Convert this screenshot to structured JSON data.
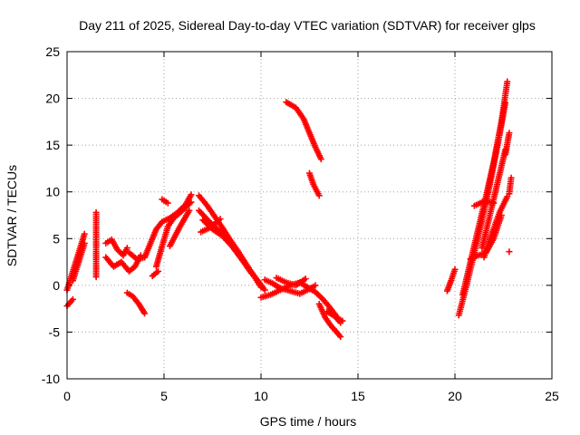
{
  "chart_data": {
    "type": "scatter",
    "title": "Day 211 of 2025, Sidereal Day-to-day VTEC variation (SDTVAR) for receiver glps",
    "xlabel": "GPS time / hours",
    "ylabel": "SDTVAR / TECUs",
    "xlim": [
      0,
      25
    ],
    "ylim": [
      -10,
      25
    ],
    "xticks": [
      0,
      5,
      10,
      15,
      20,
      25
    ],
    "yticks": [
      -10,
      -5,
      0,
      5,
      10,
      15,
      20,
      25
    ],
    "xtick_labels": [
      "0",
      "5",
      "10",
      "15",
      "20",
      "25"
    ],
    "ytick_labels": [
      "-10",
      "-5",
      "0",
      "5",
      "10",
      "15",
      "20",
      "25"
    ],
    "grid": true,
    "marker": "+",
    "color": "#ff0000",
    "segments": [
      {
        "x": [
          0.0,
          0.3,
          0.6,
          0.9
        ],
        "y": [
          -0.5,
          1.5,
          3.5,
          5.5
        ]
      },
      {
        "x": [
          0.0,
          0.3
        ],
        "y": [
          -2.2,
          -1.5
        ]
      },
      {
        "x": [
          0.3,
          0.6,
          0.9
        ],
        "y": [
          0.5,
          2.5,
          4.5
        ]
      },
      {
        "x": [
          1.5,
          1.5,
          1.5,
          1.5
        ],
        "y": [
          7.8,
          5.9,
          3.4,
          0.9
        ]
      },
      {
        "x": [
          2.0,
          2.3,
          2.6,
          2.9,
          3.1
        ],
        "y": [
          4.5,
          4.9,
          3.8,
          3.2,
          4.0
        ]
      },
      {
        "x": [
          2.0,
          2.4,
          2.8,
          3.2,
          3.5,
          3.8
        ],
        "y": [
          3.0,
          2.0,
          2.5,
          1.5,
          2.0,
          3.2
        ]
      },
      {
        "x": [
          3.1,
          3.4,
          3.7,
          4.0
        ],
        "y": [
          -0.8,
          -1.2,
          -2.0,
          -3.0
        ]
      },
      {
        "x": [
          3.2,
          3.6,
          4.0
        ],
        "y": [
          3.5,
          2.8,
          3.0
        ]
      },
      {
        "x": [
          4.0,
          4.3,
          4.6,
          4.9,
          5.3,
          5.7,
          6.1,
          6.4
        ],
        "y": [
          3.0,
          4.5,
          6.0,
          6.8,
          7.2,
          7.8,
          8.6,
          9.7
        ]
      },
      {
        "x": [
          4.6,
          4.9,
          5.2,
          5.5,
          5.9,
          6.4
        ],
        "y": [
          2.0,
          4.2,
          6.3,
          7.2,
          7.9,
          8.9
        ]
      },
      {
        "x": [
          5.3,
          5.8,
          6.3
        ],
        "y": [
          4.2,
          6.2,
          8.0
        ]
      },
      {
        "x": [
          4.4,
          4.7
        ],
        "y": [
          1.0,
          1.5
        ]
      },
      {
        "x": [
          4.9,
          5.2
        ],
        "y": [
          9.2,
          8.8
        ]
      },
      {
        "x": [
          6.8,
          7.2,
          7.6,
          8.0,
          8.4,
          8.8,
          9.2,
          9.6,
          10.0
        ],
        "y": [
          9.6,
          8.6,
          7.4,
          6.2,
          4.9,
          3.7,
          2.4,
          1.1,
          -0.2
        ]
      },
      {
        "x": [
          6.8,
          7.3,
          7.8,
          8.3,
          8.8,
          9.3,
          9.8,
          10.2
        ],
        "y": [
          8.0,
          6.9,
          5.9,
          4.8,
          3.4,
          2.0,
          0.6,
          -0.5
        ]
      },
      {
        "x": [
          7.0,
          7.5,
          8.0,
          8.5,
          9.0,
          9.5
        ],
        "y": [
          7.0,
          6.0,
          5.3,
          4.2,
          2.8,
          1.3
        ]
      },
      {
        "x": [
          6.9,
          7.4,
          7.9
        ],
        "y": [
          5.7,
          6.2,
          7.1
        ]
      },
      {
        "x": [
          10.0,
          10.5,
          11.0,
          11.5,
          12.0,
          12.4,
          12.8,
          13.2,
          13.6,
          14.0,
          14.2
        ],
        "y": [
          -1.3,
          -1.0,
          -0.5,
          0.0,
          0.3,
          -0.2,
          -0.7,
          -1.5,
          -2.5,
          -3.6,
          -3.8
        ]
      },
      {
        "x": [
          10.2,
          10.6,
          11.0,
          11.5,
          12.0,
          12.5,
          12.8
        ],
        "y": [
          0.6,
          0.2,
          -0.3,
          -0.6,
          -0.9,
          -0.4,
          0.0
        ]
      },
      {
        "x": [
          10.8,
          11.3,
          11.8,
          12.3
        ],
        "y": [
          0.8,
          0.3,
          0.0,
          0.7
        ]
      },
      {
        "x": [
          13.0,
          13.3,
          13.6,
          13.9,
          14.1
        ],
        "y": [
          -2.0,
          -3.4,
          -4.3,
          -5.0,
          -5.5
        ]
      },
      {
        "x": [
          13.4,
          13.8,
          14.1
        ],
        "y": [
          -2.8,
          -3.3,
          -4.0
        ]
      },
      {
        "x": [
          11.3,
          11.8,
          12.2,
          12.5,
          12.8,
          13.1
        ],
        "y": [
          19.6,
          19.0,
          17.8,
          16.3,
          14.8,
          13.5
        ]
      },
      {
        "x": [
          12.5,
          12.7,
          12.9,
          13.0
        ],
        "y": [
          12.0,
          10.8,
          10.0,
          9.6
        ]
      },
      {
        "x": [
          19.6,
          19.8,
          20.0
        ],
        "y": [
          -0.6,
          0.5,
          1.7
        ]
      },
      {
        "x": [
          20.2,
          20.6,
          21.0,
          21.4,
          21.8,
          22.2,
          22.6
        ],
        "y": [
          -3.2,
          0.0,
          3.5,
          7.0,
          10.8,
          15.0,
          19.5
        ]
      },
      {
        "x": [
          20.4,
          20.8,
          21.2,
          21.6,
          22.0,
          22.4,
          22.7
        ],
        "y": [
          -1.0,
          2.5,
          6.0,
          9.5,
          13.2,
          17.5,
          21.8
        ]
      },
      {
        "x": [
          21.4,
          21.8,
          22.2,
          22.6
        ],
        "y": [
          4.0,
          7.5,
          11.0,
          14.5
        ]
      },
      {
        "x": [
          21.5,
          21.9,
          22.3,
          22.7
        ],
        "y": [
          3.0,
          5.5,
          7.8,
          9.5
        ]
      },
      {
        "x": [
          20.8,
          21.2,
          21.6,
          22.0,
          22.4
        ],
        "y": [
          2.8,
          3.2,
          3.5,
          5.0,
          7.5
        ]
      },
      {
        "x": [
          21.0,
          21.5,
          22.0
        ],
        "y": [
          8.5,
          9.0,
          8.8
        ]
      },
      {
        "x": [
          22.6,
          22.8
        ],
        "y": [
          14.0,
          16.3
        ]
      },
      {
        "x": [
          22.8,
          22.9
        ],
        "y": [
          9.8,
          11.5
        ]
      },
      {
        "x": [
          22.8
        ],
        "y": [
          3.6
        ]
      }
    ]
  }
}
